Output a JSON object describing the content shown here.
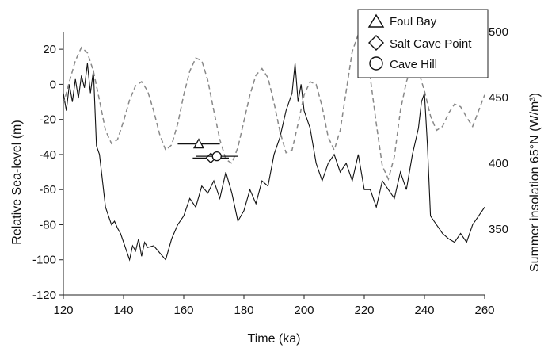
{
  "chart_data": {
    "type": "line",
    "xlabel": "Time (ka)",
    "ylabel": "Relative Sea-level (m)",
    "y2label": "Summer insolation 65°N (W/m³)",
    "xlim": [
      120,
      260
    ],
    "ylim": [
      -120,
      30
    ],
    "y2lim": [
      300,
      500
    ],
    "x_ticks": [
      120,
      140,
      160,
      180,
      200,
      220,
      240,
      260
    ],
    "y_ticks": [
      20,
      0,
      -20,
      -40,
      -60,
      -80,
      -100,
      -120
    ],
    "y2_ticks": [
      500,
      450,
      400,
      350
    ],
    "grid": false,
    "legend_position": "top-right",
    "series": [
      {
        "style": "solid",
        "color": "#111111",
        "axis": "left",
        "x": [
          120,
          121,
          122,
          123,
          124,
          125,
          126,
          127,
          128,
          129,
          130,
          131,
          132,
          133,
          134,
          135,
          136,
          137,
          138,
          139,
          140,
          141,
          142,
          143,
          144,
          145,
          146,
          147,
          148,
          150,
          152,
          154,
          156,
          158,
          160,
          162,
          164,
          166,
          168,
          170,
          172,
          174,
          176,
          178,
          180,
          182,
          184,
          186,
          188,
          190,
          192,
          194,
          196,
          197,
          198,
          199,
          200,
          202,
          204,
          206,
          208,
          210,
          212,
          214,
          216,
          218,
          220,
          222,
          224,
          226,
          228,
          230,
          232,
          234,
          236,
          238,
          239,
          240,
          241,
          242,
          244,
          246,
          248,
          250,
          252,
          254,
          256,
          258,
          260
        ],
        "y": [
          -5,
          -15,
          0,
          -10,
          3,
          -8,
          5,
          -2,
          12,
          -5,
          8,
          -35,
          -40,
          -55,
          -70,
          -75,
          -80,
          -78,
          -82,
          -85,
          -90,
          -95,
          -100,
          -92,
          -95,
          -88,
          -98,
          -90,
          -93,
          -92,
          -96,
          -100,
          -88,
          -80,
          -75,
          -65,
          -70,
          -58,
          -62,
          -55,
          -65,
          -50,
          -62,
          -78,
          -72,
          -60,
          -68,
          -55,
          -58,
          -40,
          -30,
          -15,
          -5,
          12,
          -10,
          0,
          -15,
          -25,
          -45,
          -55,
          -45,
          -40,
          -50,
          -45,
          -55,
          -40,
          -60,
          -60,
          -70,
          -55,
          -60,
          -65,
          -50,
          -60,
          -40,
          -25,
          -10,
          -5,
          -35,
          -75,
          -80,
          -85,
          -88,
          -90,
          -85,
          -90,
          -80,
          -75,
          -70
        ]
      },
      {
        "style": "dashed",
        "color": "#888888",
        "axis": "right",
        "x": [
          120,
          122,
          124,
          126,
          128,
          130,
          132,
          134,
          136,
          138,
          140,
          142,
          144,
          146,
          148,
          150,
          152,
          154,
          156,
          158,
          160,
          162,
          164,
          166,
          168,
          170,
          172,
          174,
          176,
          178,
          180,
          182,
          184,
          186,
          188,
          190,
          192,
          194,
          196,
          198,
          200,
          202,
          204,
          206,
          208,
          210,
          212,
          214,
          216,
          218,
          220,
          222,
          224,
          226,
          228,
          230,
          232,
          234,
          236,
          238,
          240,
          242,
          244,
          246,
          248,
          250,
          252,
          254,
          256,
          258,
          260
        ],
        "y": [
          445,
          462,
          478,
          488,
          484,
          470,
          448,
          425,
          415,
          418,
          432,
          448,
          459,
          462,
          455,
          440,
          422,
          410,
          414,
          430,
          452,
          470,
          480,
          478,
          463,
          440,
          418,
          403,
          400,
          412,
          432,
          452,
          467,
          472,
          465,
          446,
          424,
          408,
          410,
          430,
          452,
          462,
          460,
          443,
          420,
          410,
          425,
          455,
          485,
          498,
          492,
          465,
          430,
          398,
          388,
          405,
          440,
          462,
          475,
          470,
          455,
          436,
          425,
          428,
          438,
          445,
          443,
          435,
          428,
          440,
          452
        ]
      }
    ],
    "points": [
      {
        "label": "Foul Bay",
        "marker": "triangle",
        "x": 165,
        "y": -34,
        "xerr_low": 158,
        "xerr_high": 172
      },
      {
        "label": "Salt Cave Point",
        "marker": "diamond",
        "x": 169,
        "y": -42,
        "xerr_low": 163,
        "xerr_high": 175
      },
      {
        "label": "Cave Hill",
        "marker": "circle",
        "x": 171,
        "y": -41,
        "xerr_low": 164,
        "xerr_high": 178
      }
    ],
    "legend": [
      "Foul Bay",
      "Salt Cave Point",
      "Cave Hill"
    ]
  }
}
